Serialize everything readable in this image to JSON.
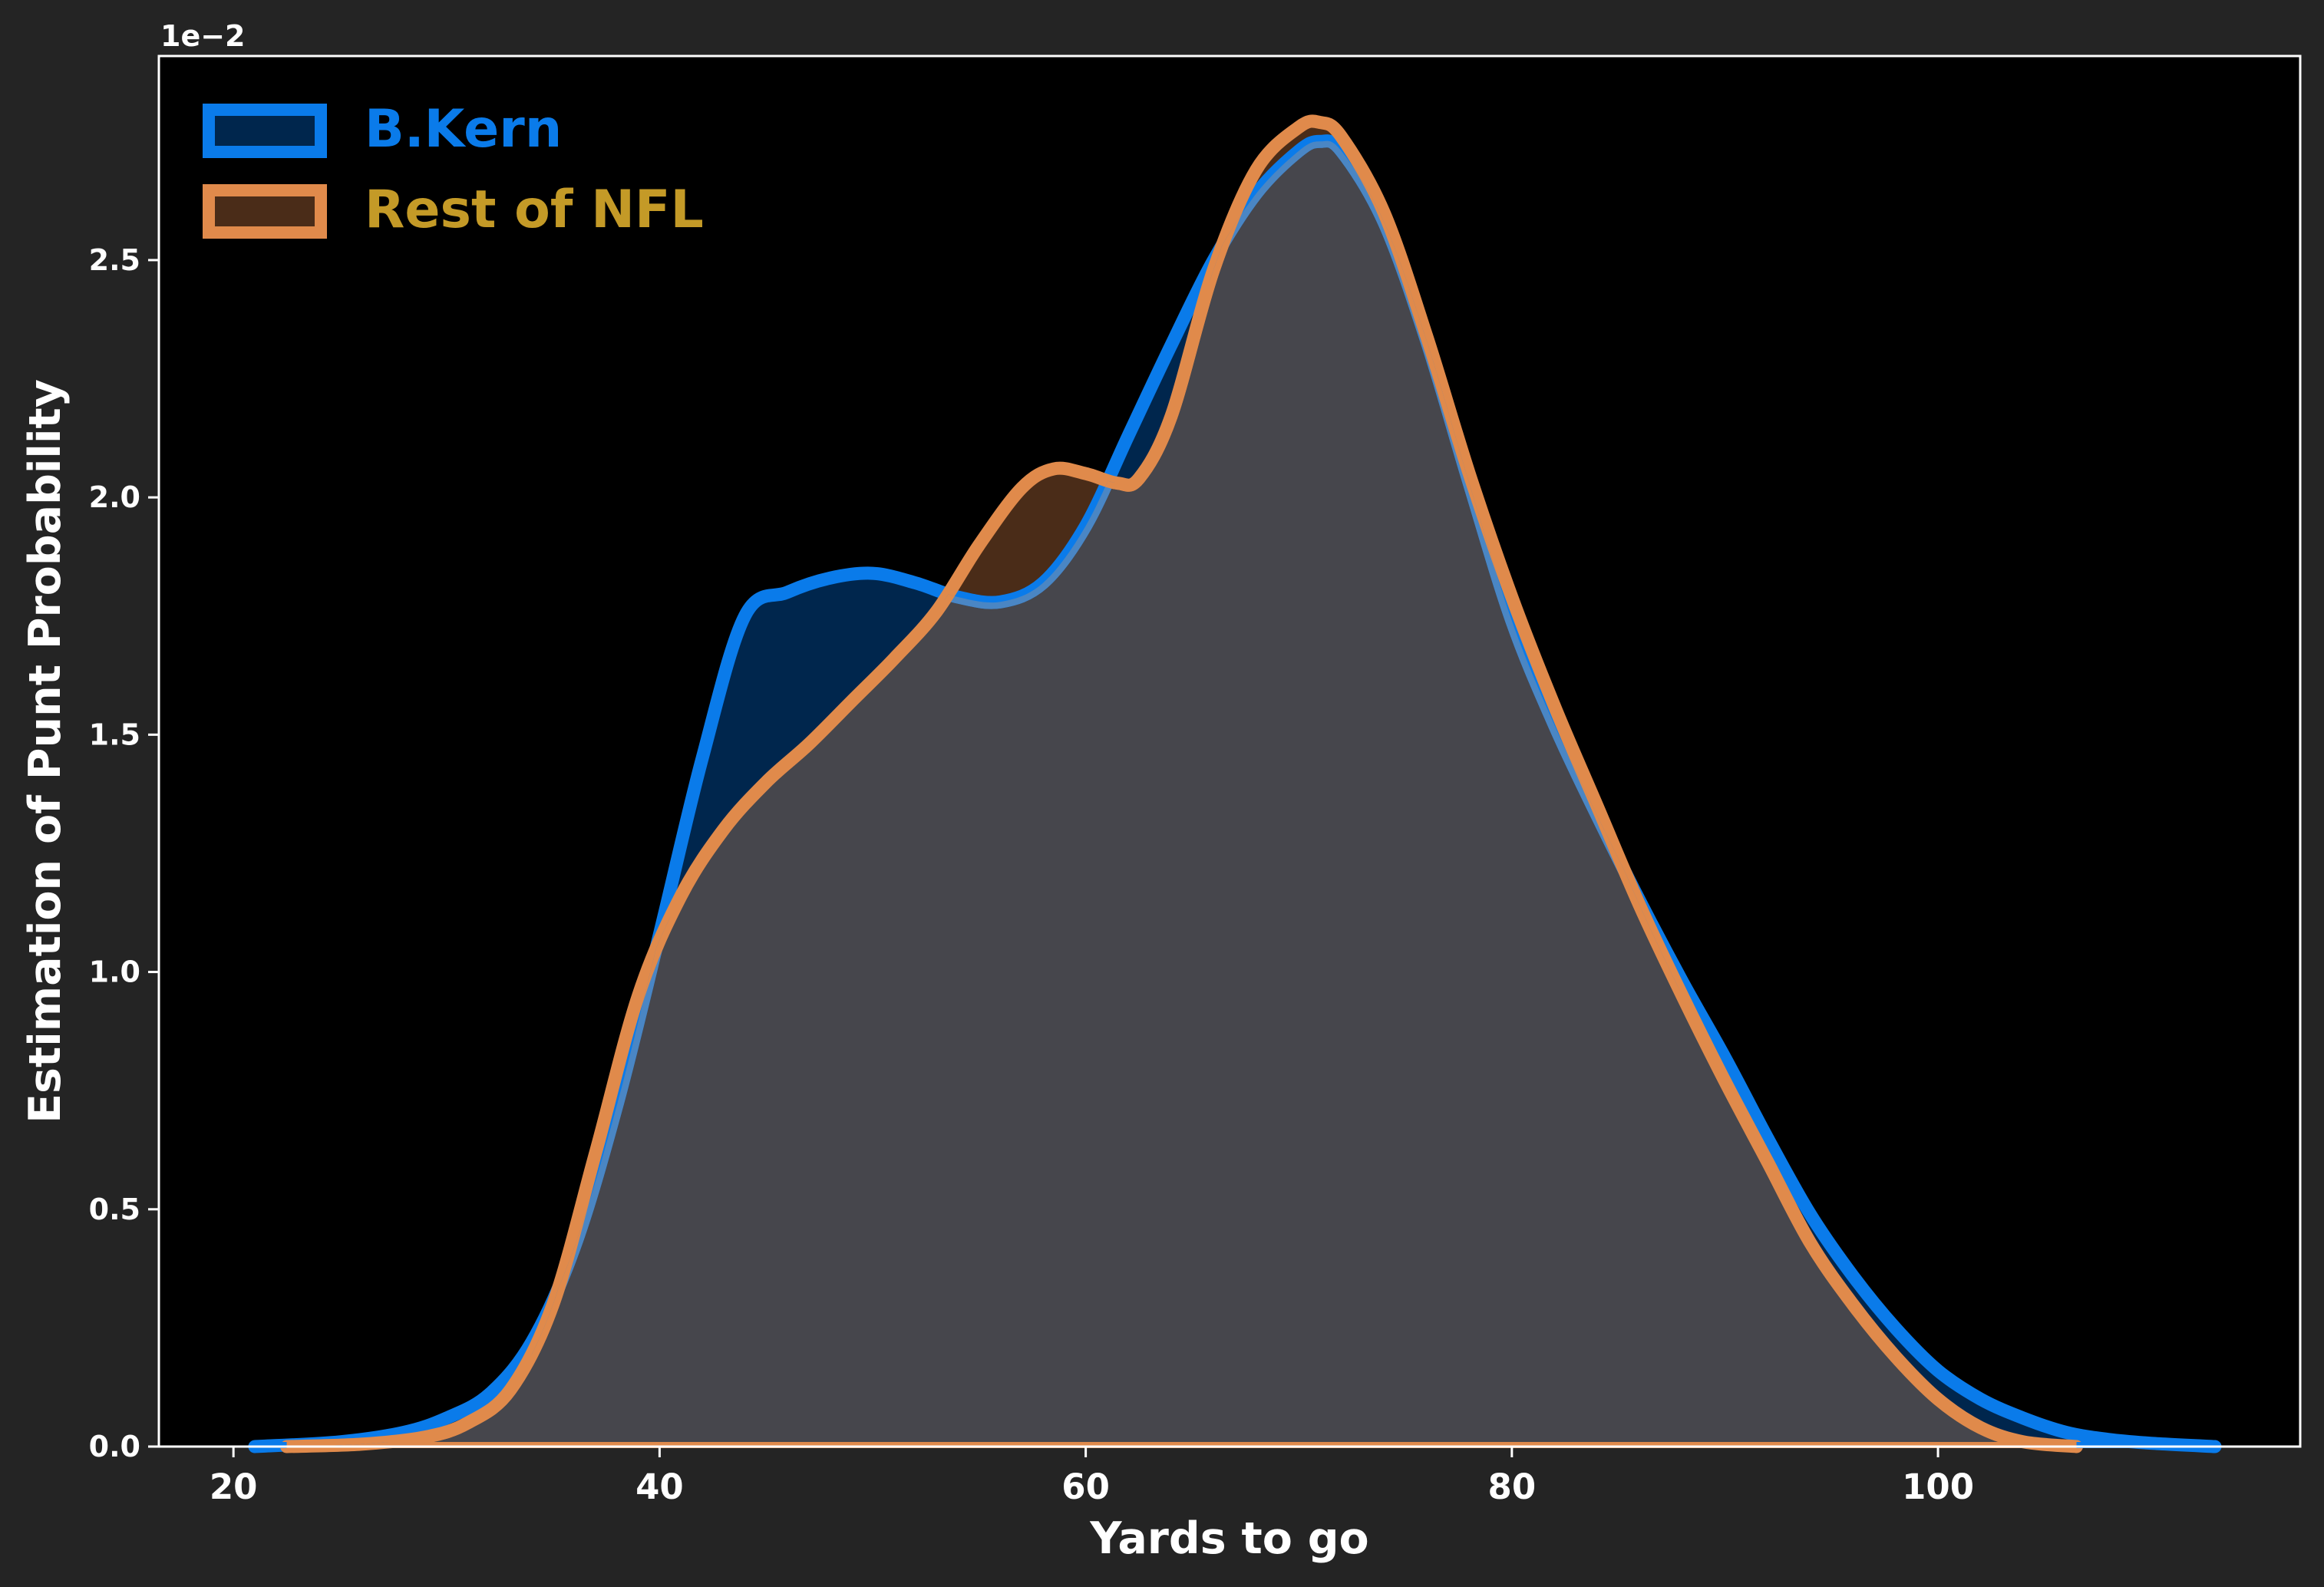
{
  "chart_data": {
    "type": "area",
    "xlabel": "Yards to go",
    "ylabel": "Estimation of Punt Probability",
    "y_offset_label": "1e−2",
    "xlim": [
      16.5,
      117
    ],
    "ylim": [
      0,
      2.93
    ],
    "x_ticks": [
      20,
      40,
      60,
      80,
      100
    ],
    "y_ticks": [
      0.0,
      0.5,
      1.0,
      1.5,
      2.0,
      2.5
    ],
    "y_tick_labels": [
      "0.0",
      "0.5",
      "1.0",
      "1.5",
      "2.0",
      "2.5"
    ],
    "background": "#000000",
    "grid": false,
    "legend_position": "top-left",
    "series": [
      {
        "name": "B.Kern",
        "line_color": "#0a7bea",
        "fill_color": "#00264d",
        "legend_text_color": "#0a7bea",
        "x": [
          21,
          25,
          28,
          30,
          32,
          34,
          36,
          38,
          40,
          42,
          44,
          46,
          48,
          50,
          52,
          54,
          56,
          58,
          60,
          62,
          64,
          66,
          68,
          70,
          71,
          72,
          74,
          76,
          78,
          80,
          82,
          84,
          86,
          88,
          90,
          92,
          94,
          96,
          98,
          100,
          102,
          104,
          106,
          108,
          110,
          113
        ],
        "y": [
          0.0,
          0.01,
          0.03,
          0.06,
          0.11,
          0.22,
          0.42,
          0.72,
          1.08,
          1.45,
          1.75,
          1.8,
          1.83,
          1.84,
          1.82,
          1.79,
          1.78,
          1.82,
          1.94,
          2.13,
          2.32,
          2.5,
          2.64,
          2.73,
          2.75,
          2.73,
          2.58,
          2.33,
          2.03,
          1.74,
          1.52,
          1.33,
          1.15,
          0.98,
          0.82,
          0.65,
          0.49,
          0.36,
          0.25,
          0.16,
          0.1,
          0.06,
          0.03,
          0.015,
          0.007,
          0.0
        ]
      },
      {
        "name": "Rest of NFL",
        "line_color": "#e08a4b",
        "fill_color": "#4a2c18",
        "legend_text_color": "#c49a27",
        "x": [
          22.5,
          26,
          29,
          31,
          33,
          35,
          37,
          39,
          41,
          43,
          45,
          47,
          49,
          51,
          53,
          55,
          57,
          58.5,
          60,
          61.5,
          62.5,
          64,
          66,
          68,
          70,
          71,
          72,
          74,
          76,
          78,
          80,
          82,
          84,
          86,
          88,
          90,
          92,
          94,
          96,
          98,
          100,
          102,
          104,
          106.5
        ],
        "y": [
          0.0,
          0.005,
          0.02,
          0.05,
          0.12,
          0.3,
          0.62,
          0.95,
          1.16,
          1.3,
          1.4,
          1.48,
          1.57,
          1.66,
          1.76,
          1.9,
          2.02,
          2.06,
          2.05,
          2.03,
          2.04,
          2.17,
          2.48,
          2.69,
          2.78,
          2.79,
          2.76,
          2.6,
          2.34,
          2.05,
          1.79,
          1.56,
          1.35,
          1.14,
          0.95,
          0.77,
          0.6,
          0.43,
          0.3,
          0.19,
          0.1,
          0.04,
          0.01,
          0.0
        ]
      }
    ]
  }
}
